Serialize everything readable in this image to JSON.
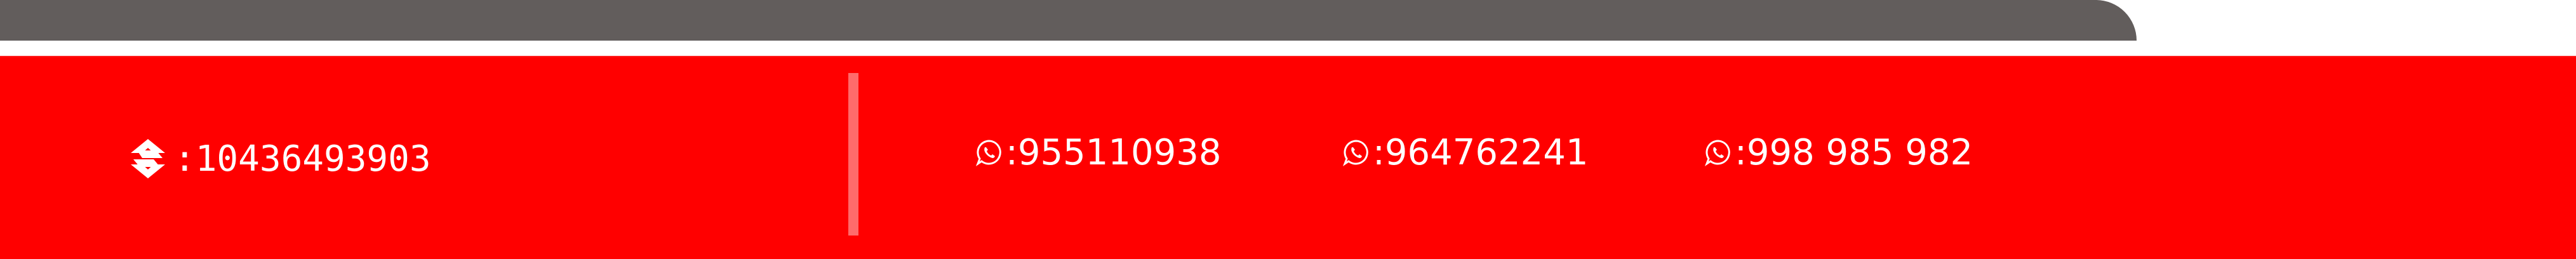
{
  "colors": {
    "top_strip": "#625d5c",
    "bar_background": "#ff0000",
    "divider": "#ff6b6b",
    "text": "#ffffff"
  },
  "contact": {
    "ruc": {
      "icon": "sunat-logo-icon",
      "text": ":10436493903"
    },
    "whatsapp": [
      {
        "icon": "whatsapp-icon",
        "text": ":955110938"
      },
      {
        "icon": "whatsapp-icon",
        "text": ":964762241"
      },
      {
        "icon": "whatsapp-icon",
        "text": ":998 985 982"
      }
    ]
  }
}
